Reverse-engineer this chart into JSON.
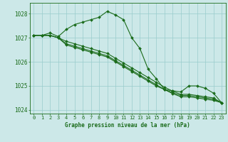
{
  "line1": [
    1027.1,
    1027.1,
    1027.2,
    1027.05,
    1027.35,
    1027.55,
    1027.65,
    1027.75,
    1027.85,
    1028.1,
    1027.95,
    1027.75,
    1027.0,
    1026.55,
    1025.7,
    1025.3,
    1024.85,
    1024.8,
    1024.75,
    1025.0,
    1025.0,
    1024.9,
    1024.7,
    1024.3
  ],
  "line2": [
    1027.1,
    1027.1,
    1027.1,
    1027.0,
    1026.85,
    1026.75,
    1026.65,
    1026.55,
    1026.45,
    1026.35,
    1026.15,
    1025.95,
    1025.75,
    1025.55,
    1025.35,
    1025.15,
    1024.95,
    1024.78,
    1024.65,
    1024.65,
    1024.6,
    1024.55,
    1024.5,
    1024.3
  ],
  "line3": [
    1027.1,
    1027.1,
    1027.1,
    1027.0,
    1026.75,
    1026.65,
    1026.55,
    1026.45,
    1026.35,
    1026.25,
    1026.05,
    1025.85,
    1025.65,
    1025.45,
    1025.25,
    1025.05,
    1024.85,
    1024.72,
    1024.6,
    1024.6,
    1024.55,
    1024.5,
    1024.45,
    1024.3
  ],
  "line4": [
    1027.1,
    1027.1,
    1027.1,
    1027.0,
    1026.7,
    1026.6,
    1026.5,
    1026.4,
    1026.3,
    1026.2,
    1026.0,
    1025.8,
    1025.6,
    1025.4,
    1025.2,
    1025.0,
    1024.85,
    1024.68,
    1024.55,
    1024.55,
    1024.5,
    1024.45,
    1024.4,
    1024.3
  ],
  "x": [
    0,
    1,
    2,
    3,
    4,
    5,
    6,
    7,
    8,
    9,
    10,
    11,
    12,
    13,
    14,
    15,
    16,
    17,
    18,
    19,
    20,
    21,
    22,
    23
  ],
  "xlim": [
    -0.5,
    23.5
  ],
  "ylim": [
    1023.85,
    1028.45
  ],
  "yticks": [
    1024,
    1025,
    1026,
    1027,
    1028
  ],
  "xticks": [
    0,
    1,
    2,
    3,
    4,
    5,
    6,
    7,
    8,
    9,
    10,
    11,
    12,
    13,
    14,
    15,
    16,
    17,
    18,
    19,
    20,
    21,
    22,
    23
  ],
  "line_color": "#1a6b1a",
  "bg_color": "#cce8e8",
  "grid_color": "#99cccc",
  "xlabel": "Graphe pression niveau de la mer (hPa)",
  "label_color": "#1a6b1a",
  "marker": "D",
  "marker_size": 2.0,
  "linewidth": 0.8,
  "tick_fontsize": 5.0,
  "xlabel_fontsize": 5.5
}
